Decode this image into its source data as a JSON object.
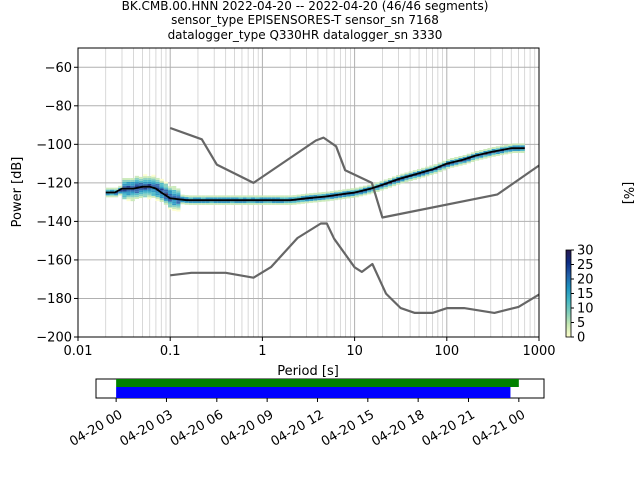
{
  "chart_data": [
    {
      "type": "heatmap",
      "title_lines": [
        "BK.CMB.00.HNN   2022-04-20 -- 2022-04-20  (46/46 segments)",
        "sensor_type EPISENSORES-T sensor_sn 7168",
        "datalogger_type Q330HR datalogger_sn 3330"
      ],
      "xlabel": "Period [s]",
      "ylabel": "Power [dB]",
      "x_scale": "log",
      "xlim": [
        0.01,
        1000
      ],
      "ylim": [
        -200,
        -50
      ],
      "x_ticks": [
        0.01,
        0.1,
        1,
        10,
        100,
        1000
      ],
      "x_tick_labels": [
        "0.01",
        "0.1",
        "1",
        "10",
        "100",
        "1000"
      ],
      "y_ticks": [
        -200,
        -180,
        -160,
        -140,
        -120,
        -100,
        -80,
        -60
      ],
      "y_tick_labels": [
        "−200",
        "−180",
        "−160",
        "−140",
        "−120",
        "−100",
        "−80",
        "−60"
      ],
      "grid": true,
      "colorbar": {
        "label": "[%]",
        "ticks": [
          0,
          5,
          10,
          15,
          20,
          25,
          30
        ],
        "tick_labels": [
          "0",
          "5",
          "10",
          "15",
          "20",
          "25",
          "30"
        ],
        "range": [
          0,
          30
        ],
        "colors": [
          "#ffffcc",
          "#c7e9b4",
          "#7fcdbb",
          "#41b6c4",
          "#1d91c0",
          "#225ea8",
          "#0c2c84",
          "#2a1a50"
        ]
      },
      "series": [
        {
          "role": "mode",
          "color": "#000000",
          "x": [
            0.02,
            0.025,
            0.03,
            0.04,
            0.05,
            0.06,
            0.07,
            0.08,
            0.1,
            0.15,
            0.2,
            0.3,
            0.5,
            1,
            2,
            3,
            5,
            7,
            10,
            15,
            20,
            30,
            50,
            70,
            100,
            150,
            200,
            300,
            500,
            700
          ],
          "y": [
            -125,
            -125,
            -123,
            -123,
            -122,
            -122,
            -123,
            -125,
            -128,
            -129,
            -129,
            -129,
            -129,
            -129,
            -129,
            -128,
            -127,
            -126,
            -125,
            -123,
            -121,
            -118,
            -115,
            -113,
            -110,
            -108,
            -106,
            -104,
            -102,
            -102
          ]
        },
        {
          "role": "high-noise-model",
          "color": "#666666",
          "x": [
            0.1,
            0.22,
            0.32,
            0.8,
            3.8,
            4.6,
            6.3,
            7.9,
            15.4,
            20,
            354.8,
            1000
          ],
          "y": [
            -91.5,
            -97.4,
            -110.5,
            -120,
            -98,
            -96.5,
            -101,
            -113.5,
            -120,
            -138,
            -126,
            -111
          ]
        },
        {
          "role": "low-noise-model",
          "color": "#666666",
          "x": [
            0.1,
            0.17,
            0.4,
            0.8,
            1.24,
            2.4,
            4.3,
            5,
            6,
            10,
            12,
            15.6,
            21.9,
            31.6,
            45,
            70,
            101,
            154,
            328,
            600,
            1000
          ],
          "y": [
            -168,
            -166.7,
            -166.7,
            -169.2,
            -163.7,
            -148.6,
            -141.1,
            -141.1,
            -149,
            -163.8,
            -166.2,
            -162.1,
            -177.5,
            -185,
            -187.5,
            -187.5,
            -185,
            -185,
            -187.5,
            -184.4,
            -178
          ]
        }
      ]
    },
    {
      "type": "timeline",
      "x_tick_labels": [
        "04-20 00",
        "04-20 03",
        "04-20 06",
        "04-20 09",
        "04-20 12",
        "04-20 15",
        "04-20 18",
        "04-20 21",
        "04-21 00"
      ],
      "x_ticks_hours": [
        0,
        3,
        6,
        9,
        12,
        15,
        18,
        21,
        24
      ],
      "xlim_hours": [
        -1.2,
        25.5
      ],
      "bars": [
        {
          "role": "data-available",
          "color": "#008000",
          "start_hours": 0,
          "end_hours": 24.0
        },
        {
          "role": "psd-segments",
          "color": "#0000ff",
          "start_hours": 0,
          "end_hours": 23.5
        }
      ]
    }
  ]
}
